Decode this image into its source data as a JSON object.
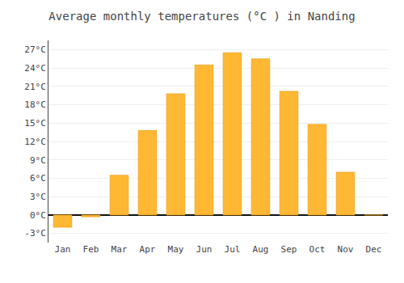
{
  "chart_data": {
    "type": "bar",
    "title": "Average monthly temperatures (°C ) in Nanding",
    "categories": [
      "Jan",
      "Feb",
      "Mar",
      "Apr",
      "May",
      "Jun",
      "Jul",
      "Aug",
      "Sep",
      "Oct",
      "Nov",
      "Dec"
    ],
    "values": [
      -2.0,
      -0.3,
      6.5,
      13.8,
      19.8,
      24.5,
      26.5,
      25.5,
      20.2,
      14.8,
      7.0,
      0.0
    ],
    "color": "#FFB833",
    "ylim": [
      -4.5,
      28.5
    ],
    "yticks": [
      {
        "value": -3,
        "label": "-3°C"
      },
      {
        "value": 0,
        "label": "0°C"
      },
      {
        "value": 3,
        "label": "3°C"
      },
      {
        "value": 6,
        "label": "6°C"
      },
      {
        "value": 9,
        "label": "9°C"
      },
      {
        "value": 12,
        "label": "12°C"
      },
      {
        "value": 15,
        "label": "15°C"
      },
      {
        "value": 18,
        "label": "18°C"
      },
      {
        "value": 21,
        "label": "21°C"
      },
      {
        "value": 24,
        "label": "24°C"
      },
      {
        "value": 27,
        "label": "27°C"
      }
    ],
    "grid": true
  }
}
